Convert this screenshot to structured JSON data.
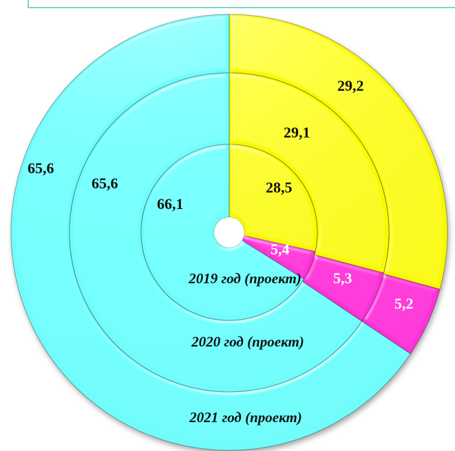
{
  "colors": {
    "segment_1": "#6ffcfb",
    "segment_2": "#f8f900",
    "segment_3": "#ff33d9"
  },
  "chart_data": {
    "type": "pie",
    "subtype": "multi-ring donut",
    "title": "",
    "categories": [
      "segment_1",
      "segment_2",
      "segment_3"
    ],
    "series": [
      {
        "name": "2019 год (проект)",
        "values": [
          66.1,
          28.5,
          5.4
        ],
        "labels": [
          "66,1",
          "28,5",
          "5,4"
        ]
      },
      {
        "name": "2020 год (проект)",
        "values": [
          65.6,
          29.1,
          5.3
        ],
        "labels": [
          "65,6",
          "29,1",
          "5,3"
        ]
      },
      {
        "name": "2021 год (проект)",
        "values": [
          65.6,
          29.2,
          5.2
        ],
        "labels": [
          "65,6",
          "29,2",
          "5,2"
        ]
      }
    ],
    "legend": "none"
  }
}
